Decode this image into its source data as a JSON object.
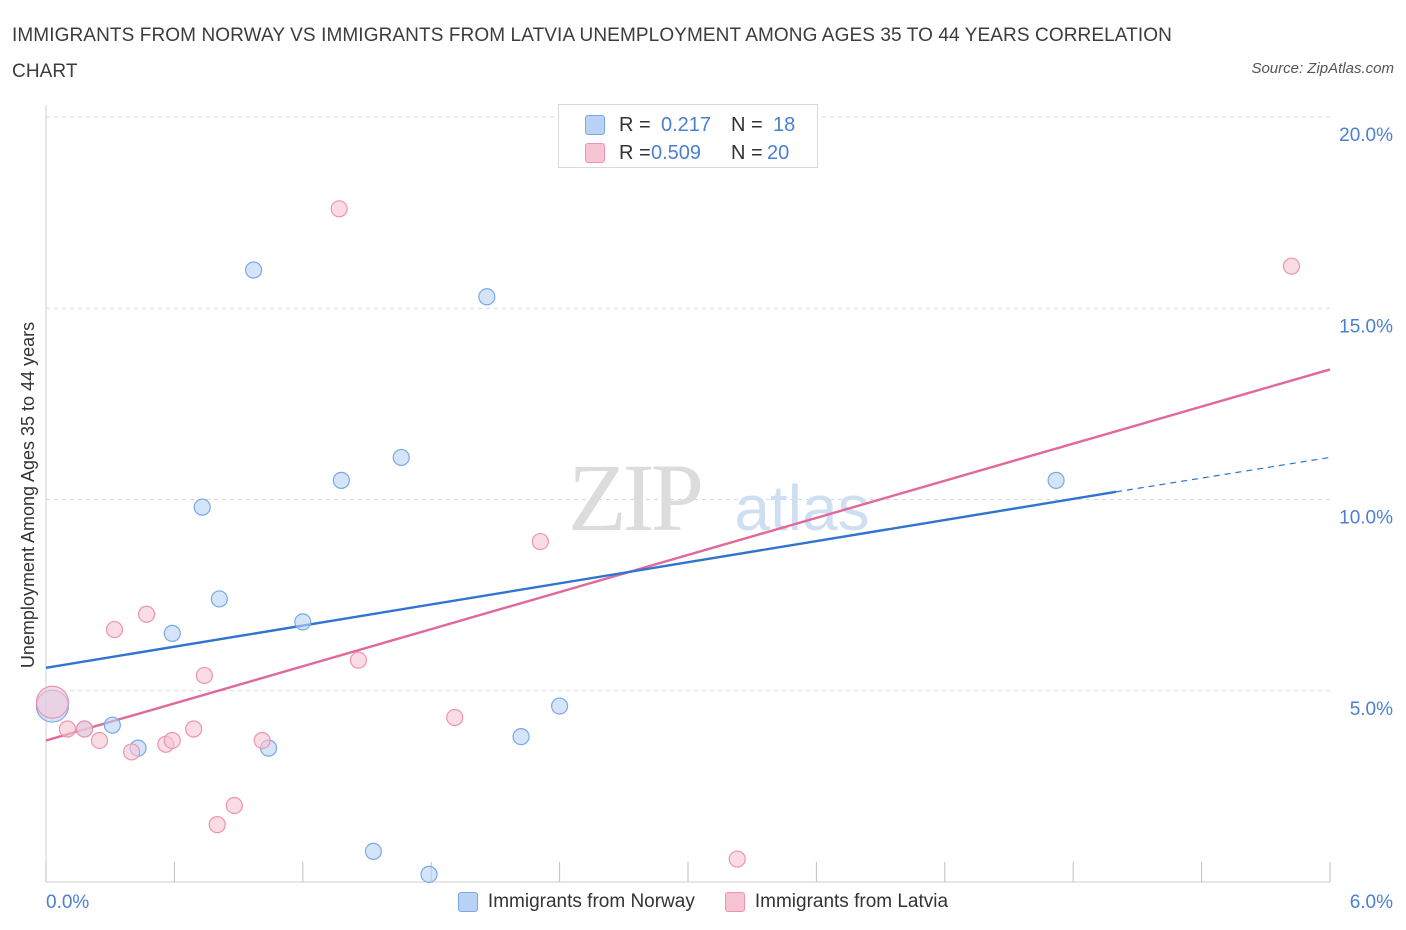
{
  "title": "IMMIGRANTS FROM NORWAY VS IMMIGRANTS FROM LATVIA UNEMPLOYMENT AMONG AGES 35 TO 44 YEARS CORRELATION CHART",
  "source": "Source: ZipAtlas.com",
  "watermark": {
    "zip": "ZIP",
    "atlas": "atlas"
  },
  "colors": {
    "norway_fill": "#b8d3f5",
    "norway_stroke": "#7aa8e6",
    "norway_line": "#2f74d0",
    "latvia_fill": "#f7c4d4",
    "latvia_stroke": "#ee94b0",
    "latvia_line": "#e0689a",
    "axis_label": "#4a7fd4",
    "grid": "#d8d8d8"
  },
  "stats": {
    "norway": {
      "r_label": "R =",
      "r_value": "0.217",
      "n_label": "N =",
      "n_value": "18"
    },
    "latvia": {
      "r_label": "R =",
      "r_value": "0.509",
      "n_label": "N =",
      "n_value": "20"
    }
  },
  "chart_data": {
    "type": "scatter",
    "title": "IMMIGRANTS FROM NORWAY VS IMMIGRANTS FROM LATVIA UNEMPLOYMENT AMONG AGES 35 TO 44 YEARS CORRELATION CHART",
    "xlabel": "",
    "ylabel": "Unemployment Among Ages 35 to 44 years",
    "xlim": [
      0,
      6
    ],
    "ylim": [
      0,
      20
    ],
    "x_tick_labels": {
      "min": "0.0%",
      "max": "6.0%"
    },
    "y_ticks": [
      {
        "value": 5,
        "label": "5.0%"
      },
      {
        "value": 10,
        "label": "10.0%"
      },
      {
        "value": 15,
        "label": "15.0%"
      },
      {
        "value": 20,
        "label": "20.0%"
      }
    ],
    "series": [
      {
        "name": "Immigrants from Norway",
        "points": [
          {
            "x": 0.03,
            "y": 4.6,
            "size": "large"
          },
          {
            "x": 0.18,
            "y": 4.0
          },
          {
            "x": 0.31,
            "y": 4.1
          },
          {
            "x": 0.43,
            "y": 3.5
          },
          {
            "x": 0.59,
            "y": 6.5
          },
          {
            "x": 0.73,
            "y": 9.8
          },
          {
            "x": 0.81,
            "y": 7.4
          },
          {
            "x": 0.97,
            "y": 16.0
          },
          {
            "x": 1.04,
            "y": 3.5
          },
          {
            "x": 1.2,
            "y": 6.8
          },
          {
            "x": 1.38,
            "y": 10.5
          },
          {
            "x": 1.53,
            "y": 0.8
          },
          {
            "x": 1.66,
            "y": 11.1
          },
          {
            "x": 1.79,
            "y": 0.2
          },
          {
            "x": 2.06,
            "y": 15.3
          },
          {
            "x": 2.22,
            "y": 3.8
          },
          {
            "x": 2.4,
            "y": 4.6
          },
          {
            "x": 4.72,
            "y": 10.5
          }
        ],
        "trend": {
          "x0": 0.0,
          "y0": 5.6,
          "x1": 5.0,
          "y1": 10.2,
          "dash_x1": 6.0,
          "dash_y1": 11.1
        }
      },
      {
        "name": "Immigrants from Latvia",
        "points": [
          {
            "x": 0.03,
            "y": 4.7,
            "size": "large"
          },
          {
            "x": 0.1,
            "y": 4.0
          },
          {
            "x": 0.18,
            "y": 4.0
          },
          {
            "x": 0.25,
            "y": 3.7
          },
          {
            "x": 0.32,
            "y": 6.6
          },
          {
            "x": 0.4,
            "y": 3.4
          },
          {
            "x": 0.47,
            "y": 7.0
          },
          {
            "x": 0.56,
            "y": 3.6
          },
          {
            "x": 0.59,
            "y": 3.7
          },
          {
            "x": 0.69,
            "y": 4.0
          },
          {
            "x": 0.74,
            "y": 5.4
          },
          {
            "x": 0.8,
            "y": 1.5
          },
          {
            "x": 0.88,
            "y": 2.0
          },
          {
            "x": 1.01,
            "y": 3.7
          },
          {
            "x": 1.37,
            "y": 17.6
          },
          {
            "x": 1.46,
            "y": 5.8
          },
          {
            "x": 1.91,
            "y": 4.3
          },
          {
            "x": 2.31,
            "y": 8.9
          },
          {
            "x": 3.23,
            "y": 0.6
          },
          {
            "x": 5.82,
            "y": 16.1
          }
        ],
        "trend": {
          "x0": 0.0,
          "y0": 3.7,
          "x1": 6.0,
          "y1": 13.4
        }
      }
    ]
  }
}
